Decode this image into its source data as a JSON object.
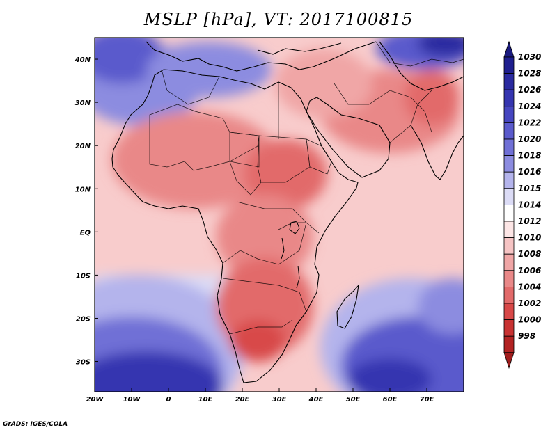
{
  "title": "MSLP [hPa], VT: 2017100815",
  "credit": "GrADS: IGES/COLA",
  "axes": {
    "x_ticks": [
      {
        "label": "20W",
        "lon": -20
      },
      {
        "label": "10W",
        "lon": -10
      },
      {
        "label": "0",
        "lon": 0
      },
      {
        "label": "10E",
        "lon": 10
      },
      {
        "label": "20E",
        "lon": 20
      },
      {
        "label": "30E",
        "lon": 30
      },
      {
        "label": "40E",
        "lon": 40
      },
      {
        "label": "50E",
        "lon": 50
      },
      {
        "label": "60E",
        "lon": 60
      },
      {
        "label": "70E",
        "lon": 70
      }
    ],
    "y_ticks": [
      {
        "label": "40N",
        "lat": 40
      },
      {
        "label": "30N",
        "lat": 30
      },
      {
        "label": "20N",
        "lat": 20
      },
      {
        "label": "10N",
        "lat": 10
      },
      {
        "label": "EQ",
        "lat": 0
      },
      {
        "label": "10S",
        "lat": -10
      },
      {
        "label": "20S",
        "lat": -20
      },
      {
        "label": "30S",
        "lat": -30
      }
    ],
    "lon_range": [
      -20,
      80
    ],
    "lat_range": [
      -37,
      45
    ]
  },
  "colorbar": {
    "levels": [
      {
        "label": "1030",
        "color": "#1f1f8f"
      },
      {
        "label": "1028",
        "color": "#2a2aa0"
      },
      {
        "label": "1026",
        "color": "#3535b0"
      },
      {
        "label": "1024",
        "color": "#4646c0"
      },
      {
        "label": "1022",
        "color": "#5a5acc"
      },
      {
        "label": "1020",
        "color": "#7070d6"
      },
      {
        "label": "1018",
        "color": "#8c8ce0"
      },
      {
        "label": "1016",
        "color": "#b4b4ec"
      },
      {
        "label": "1015",
        "color": "#dcdcf6"
      },
      {
        "label": "1014",
        "color": "#ffffff"
      },
      {
        "label": "1012",
        "color": "#fde6e6"
      },
      {
        "label": "1010",
        "color": "#f6c4c4"
      },
      {
        "label": "1008",
        "color": "#f0a6a6"
      },
      {
        "label": "1006",
        "color": "#e98888"
      },
      {
        "label": "1004",
        "color": "#e26a6a"
      },
      {
        "label": "1002",
        "color": "#d84848"
      },
      {
        "label": "1000",
        "color": "#c83232"
      },
      {
        "label": "998",
        "color": "#b22222"
      }
    ],
    "top_cap_color": "#1a1a80",
    "bottom_cap_color": "#a01c1c"
  },
  "field_colors": {
    "deep_high": "#2a2aa0",
    "high": "#5a5acc",
    "mid_high": "#b4b4ec",
    "neutral": "#ffffff",
    "low": "#f6c4c4",
    "mid_low": "#e98888",
    "deep_low": "#d84848"
  }
}
